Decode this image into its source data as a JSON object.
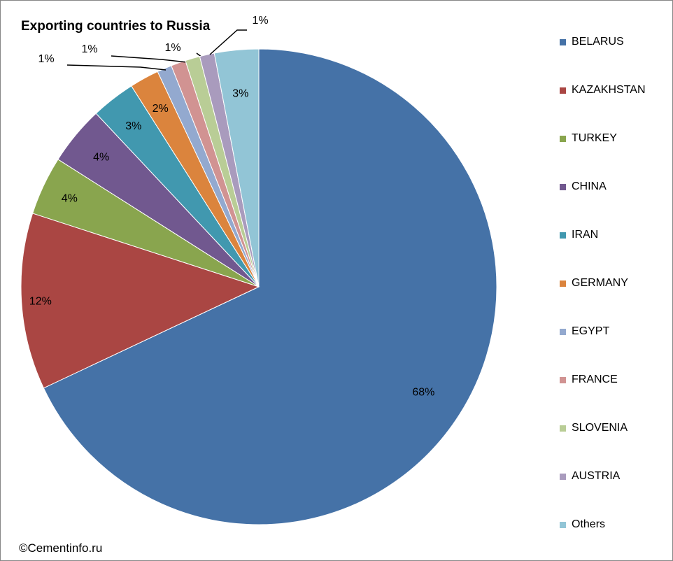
{
  "chart_data": {
    "type": "pie",
    "title": "Exporting countries to Russia",
    "categories": [
      "BELARUS",
      "KAZAKHSTAN",
      "TURKEY",
      "CHINA",
      "IRAN",
      "GERMANY",
      "EGYPT",
      "FRANCE",
      "SLOVENIA",
      "AUSTRIA",
      "Others"
    ],
    "values": [
      68,
      12,
      4,
      4,
      3,
      2,
      1,
      1,
      1,
      1,
      3
    ],
    "data_labels": [
      "68%",
      "12%",
      "4%",
      "4%",
      "3%",
      "2%",
      "1%",
      "1%",
      "1%",
      "1%",
      "3%"
    ],
    "colors": [
      "#4572A7",
      "#AA4643",
      "#89A54E",
      "#71588F",
      "#4198AF",
      "#DB843D",
      "#93A9CF",
      "#D19392",
      "#B9CD96",
      "#A99BBD",
      "#92C5D6"
    ],
    "legend_position": "right",
    "start_angle": "top, clockwise"
  },
  "credit": "©Cementinfo.ru"
}
